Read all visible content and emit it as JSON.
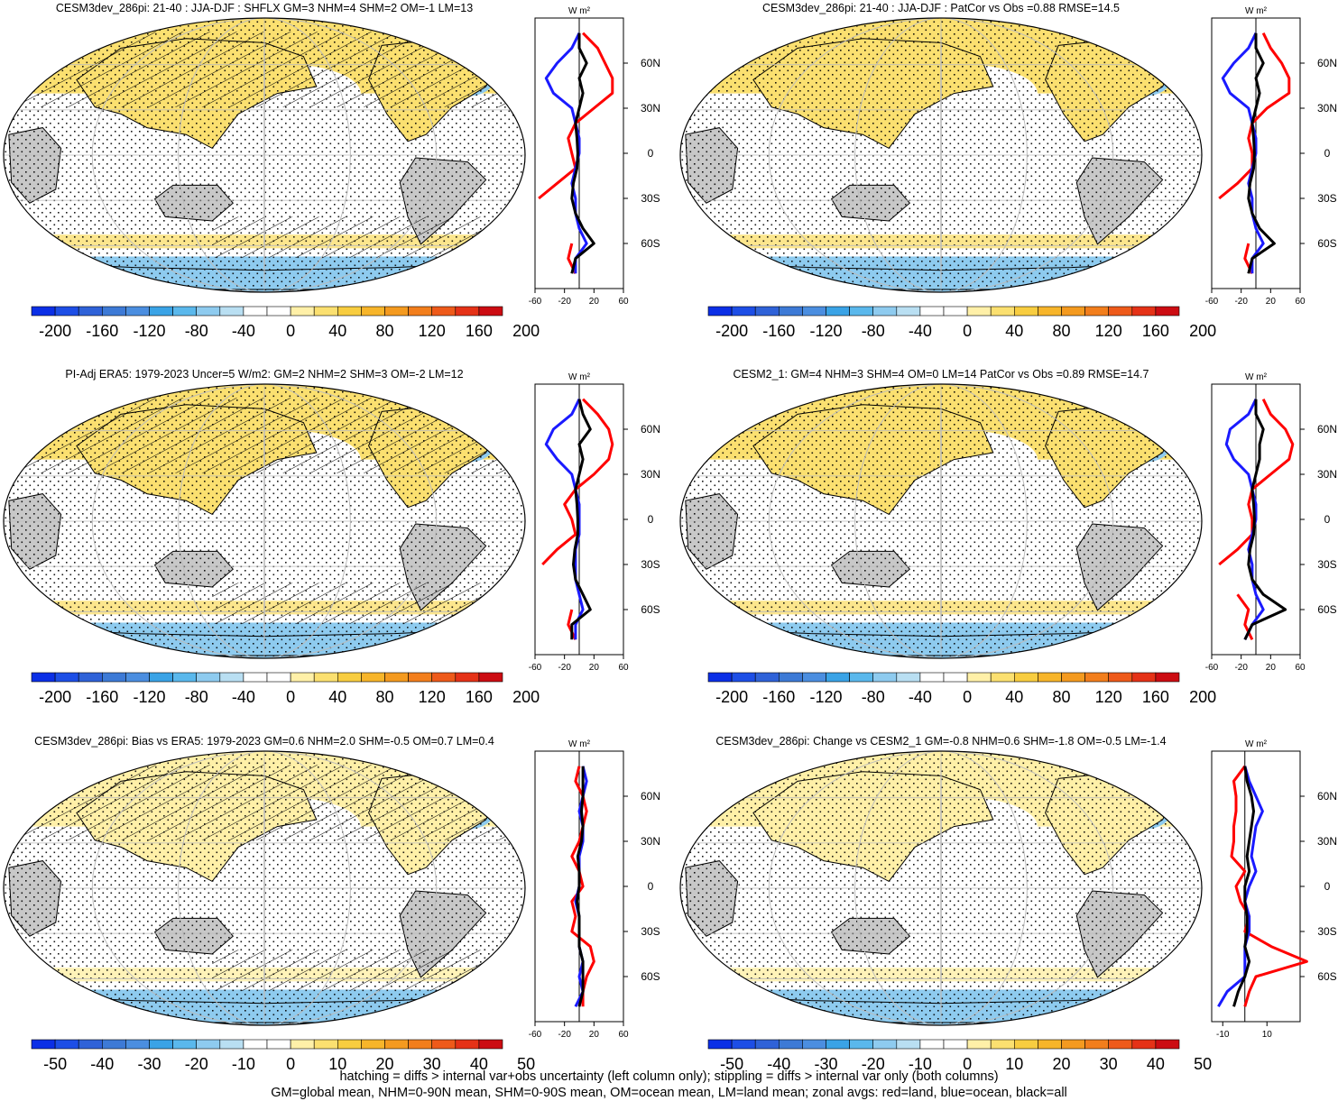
{
  "colors": {
    "levels": [
      "#0b2fe6",
      "#1d4ee6",
      "#2f62d8",
      "#3d7ad6",
      "#4b8ee0",
      "#3aa3e6",
      "#5ab8ec",
      "#8ecbef",
      "#b9dff2",
      "#ffffff",
      "#ffffff",
      "#fff0a8",
      "#fbe070",
      "#f8cd40",
      "#f7b52a",
      "#f49a1f",
      "#f27e1c",
      "#ee5a1a",
      "#e53217",
      "#cc0c12"
    ],
    "land_mask": "#c8c8c8",
    "land_profile": "#ff0000",
    "ocean_profile": "#1a1aff",
    "all_profile": "#000000"
  },
  "panels": [
    {
      "title": "CESM3dev_286pi: 21-40 : JJA-DJF : SHFLX GM=3 NHM=4 SHM=2 OM=-1 LM=13",
      "colorbar_labels": [
        "-200",
        "-160",
        "-120",
        "-80",
        "-40",
        "0",
        "40",
        "80",
        "120",
        "160",
        "200"
      ],
      "profile_unit": "W m²",
      "profile_xticks": [
        "-60",
        "-20",
        "20",
        "60"
      ],
      "lat_labels": [
        "60N",
        "30N",
        "0",
        "30S",
        "60S"
      ],
      "hatching": true
    },
    {
      "title": "CESM3dev_286pi: 21-40 : JJA-DJF : PatCor vs Obs =0.88 RMSE=14.5",
      "colorbar_labels": [
        "-200",
        "-160",
        "-120",
        "-80",
        "-40",
        "0",
        "40",
        "80",
        "120",
        "160",
        "200"
      ],
      "profile_unit": "W m²",
      "profile_xticks": [
        "-60",
        "-20",
        "20",
        "60"
      ],
      "lat_labels": [
        "60N",
        "30N",
        "0",
        "30S",
        "60S"
      ],
      "hatching": false
    },
    {
      "title": "PI-Adj ERA5: 1979-2023 Uncer=5 W/m2: GM=2 NHM=2 SHM=3 OM=-2 LM=12",
      "colorbar_labels": [
        "-200",
        "-160",
        "-120",
        "-80",
        "-40",
        "0",
        "40",
        "80",
        "120",
        "160",
        "200"
      ],
      "profile_unit": "W m²",
      "profile_xticks": [
        "-60",
        "-20",
        "20",
        "60"
      ],
      "lat_labels": [
        "60N",
        "30N",
        "0",
        "30S",
        "60S"
      ],
      "hatching": true
    },
    {
      "title": "CESM2_1: GM=4 NHM=3 SHM=4 OM=0 LM=14 PatCor vs Obs =0.89 RMSE=14.7",
      "colorbar_labels": [
        "-200",
        "-160",
        "-120",
        "-80",
        "-40",
        "0",
        "40",
        "80",
        "120",
        "160",
        "200"
      ],
      "profile_unit": "W m²",
      "profile_xticks": [
        "-60",
        "-20",
        "20",
        "60"
      ],
      "lat_labels": [
        "60N",
        "30N",
        "0",
        "30S",
        "60S"
      ],
      "hatching": false
    },
    {
      "title": "CESM3dev_286pi: Bias vs ERA5: 1979-2023 GM=0.6 NHM=2.0 SHM=-0.5 OM=0.7 LM=0.4",
      "colorbar_labels": [
        "-50",
        "-40",
        "-30",
        "-20",
        "-10",
        "0",
        "10",
        "20",
        "30",
        "40",
        "50"
      ],
      "profile_unit": "W m²",
      "profile_xticks": [
        "-60",
        "-20",
        "20",
        "60"
      ],
      "lat_labels": [
        "60N",
        "30N",
        "0",
        "30S",
        "60S"
      ],
      "hatching": true
    },
    {
      "title": "CESM3dev_286pi: Change vs CESM2_1 GM=-0.8 NHM=0.6 SHM=-1.8 OM=-0.5 LM=-1.4",
      "colorbar_labels": [
        "-50",
        "-40",
        "-30",
        "-20",
        "-10",
        "0",
        "10",
        "20",
        "30",
        "40",
        "50"
      ],
      "profile_unit": "W m²",
      "profile_xticks": [
        "-10",
        "10"
      ],
      "lat_labels": [
        "60N",
        "30N",
        "0",
        "30S",
        "60S"
      ],
      "hatching": false
    }
  ],
  "footer": {
    "line1": "hatching = diffs > internal var+obs uncertainty (left column only); stippling = diffs > internal var only (both columns)",
    "line2": "GM=global mean, NHM=0-90N mean, SHM=0-90S mean, OM=ocean mean, LM=land mean; zonal avgs: red=land, blue=ocean, black=all"
  },
  "chart_data": [
    {
      "type": "heatmap",
      "title": "CESM3dev_286pi: 21-40 : JJA-DJF : SHFLX GM=3 NHM=4 SHM=2 OM=-1 LM=13",
      "colorbar": [
        -200,
        -160,
        -120,
        -80,
        -40,
        0,
        40,
        80,
        120,
        160,
        200
      ],
      "zonal_profile": {
        "xticks": [
          -60,
          -20,
          20,
          60
        ],
        "lat": [
          -80,
          -70,
          -60,
          -50,
          -40,
          -30,
          -20,
          -10,
          0,
          10,
          20,
          30,
          40,
          50,
          60,
          70,
          80
        ],
        "series": [
          {
            "name": "land",
            "color": "red",
            "values": [
              -5,
              -15,
              -10,
              null,
              null,
              -55,
              -30,
              -5,
              -10,
              -15,
              -5,
              20,
              45,
              45,
              35,
              25,
              5
            ]
          },
          {
            "name": "ocean",
            "color": "blue",
            "values": [
              -5,
              -5,
              10,
              0,
              -5,
              -5,
              -10,
              -5,
              0,
              0,
              -5,
              -10,
              -35,
              -45,
              -30,
              -10,
              0
            ]
          },
          {
            "name": "all",
            "color": "black",
            "values": [
              -10,
              -5,
              20,
              5,
              -5,
              -10,
              -8,
              -3,
              -2,
              -3,
              -5,
              0,
              5,
              0,
              10,
              0,
              0
            ]
          }
        ]
      }
    },
    {
      "type": "heatmap",
      "title": "CESM3dev_286pi: 21-40 : JJA-DJF : PatCor vs Obs =0.88 RMSE=14.5",
      "colorbar": [
        -200,
        -160,
        -120,
        -80,
        -40,
        0,
        40,
        80,
        120,
        160,
        200
      ],
      "zonal_profile": {
        "xticks": [
          -60,
          -20,
          20,
          60
        ],
        "lat": [
          -80,
          -70,
          -60,
          -50,
          -40,
          -30,
          -20,
          -10,
          0,
          10,
          20,
          30,
          40,
          50,
          60,
          70,
          80
        ],
        "series": [
          {
            "name": "land",
            "color": "red",
            "values": [
              -5,
              -15,
              -10,
              null,
              null,
              -50,
              -25,
              -5,
              -5,
              -10,
              -5,
              15,
              45,
              45,
              35,
              20,
              10
            ]
          },
          {
            "name": "ocean",
            "color": "blue",
            "values": [
              -5,
              -5,
              10,
              0,
              -5,
              -5,
              -10,
              -5,
              0,
              0,
              -5,
              -10,
              -35,
              -45,
              -30,
              -10,
              0
            ]
          },
          {
            "name": "all",
            "color": "black",
            "values": [
              -10,
              -5,
              25,
              5,
              -5,
              -10,
              -8,
              -3,
              -2,
              -3,
              -5,
              0,
              5,
              0,
              10,
              0,
              0
            ]
          }
        ]
      }
    },
    {
      "type": "heatmap",
      "title": "PI-Adj ERA5: 1979-2023 Uncer=5 W/m2: GM=2 NHM=2 SHM=3 OM=-2 LM=12",
      "colorbar": [
        -200,
        -160,
        -120,
        -80,
        -40,
        0,
        40,
        80,
        120,
        160,
        200
      ],
      "zonal_profile": {
        "xticks": [
          -60,
          -20,
          20,
          60
        ],
        "lat": [
          -80,
          -70,
          -60,
          -50,
          -40,
          -30,
          -20,
          -10,
          0,
          10,
          20,
          30,
          40,
          50,
          60,
          70,
          80
        ],
        "series": [
          {
            "name": "land",
            "color": "red",
            "values": [
              -5,
              -15,
              -10,
              null,
              null,
              -50,
              -30,
              -5,
              -10,
              -20,
              -5,
              20,
              40,
              45,
              40,
              25,
              5
            ]
          },
          {
            "name": "ocean",
            "color": "blue",
            "values": [
              -5,
              -5,
              5,
              0,
              -5,
              -5,
              -5,
              0,
              0,
              0,
              -5,
              -10,
              -30,
              -45,
              -35,
              -10,
              0
            ]
          },
          {
            "name": "all",
            "color": "black",
            "values": [
              -10,
              -10,
              15,
              5,
              -5,
              -8,
              -6,
              -2,
              -2,
              -3,
              -5,
              0,
              5,
              0,
              15,
              5,
              0
            ]
          }
        ]
      }
    },
    {
      "type": "heatmap",
      "title": "CESM2_1: GM=4 NHM=3 SHM=4 OM=0 LM=14 PatCor vs Obs =0.89 RMSE=14.7",
      "colorbar": [
        -200,
        -160,
        -120,
        -80,
        -40,
        0,
        40,
        80,
        120,
        160,
        200
      ],
      "zonal_profile": {
        "xticks": [
          -60,
          -20,
          20,
          60
        ],
        "lat": [
          -80,
          -70,
          -60,
          -50,
          -40,
          -30,
          -20,
          -10,
          0,
          10,
          20,
          30,
          40,
          50,
          60,
          70,
          80
        ],
        "series": [
          {
            "name": "land",
            "color": "red",
            "values": [
              -5,
              -15,
              -10,
              -25,
              null,
              -50,
              -25,
              -5,
              -5,
              -10,
              -5,
              20,
              45,
              50,
              40,
              20,
              10
            ]
          },
          {
            "name": "ocean",
            "color": "blue",
            "values": [
              -15,
              -5,
              10,
              0,
              -5,
              -5,
              -10,
              -5,
              0,
              0,
              -5,
              -10,
              -30,
              -40,
              -35,
              -10,
              0
            ]
          },
          {
            "name": "all",
            "color": "black",
            "values": [
              -15,
              -5,
              40,
              10,
              -5,
              -10,
              -8,
              -3,
              -2,
              -3,
              -5,
              0,
              5,
              5,
              10,
              0,
              0
            ]
          }
        ]
      }
    },
    {
      "type": "heatmap",
      "title": "CESM3dev_286pi: Bias vs ERA5: 1979-2023 GM=0.6 NHM=2.0 SHM=-0.5 OM=0.7 LM=0.4",
      "colorbar": [
        -50,
        -40,
        -30,
        -20,
        -10,
        0,
        10,
        20,
        30,
        40,
        50
      ],
      "zonal_profile": {
        "xticks": [
          -60,
          -20,
          20,
          60
        ],
        "lat": [
          -80,
          -70,
          -60,
          -50,
          -40,
          -30,
          -20,
          -10,
          0,
          10,
          20,
          30,
          40,
          50,
          60,
          70,
          80
        ],
        "series": [
          {
            "name": "land",
            "color": "red",
            "values": [
              5,
              5,
              10,
              20,
              15,
              -10,
              -5,
              -10,
              5,
              0,
              -10,
              0,
              5,
              10,
              5,
              -5,
              0
            ]
          },
          {
            "name": "ocean",
            "color": "blue",
            "values": [
              -5,
              5,
              0,
              5,
              0,
              0,
              0,
              -5,
              0,
              0,
              0,
              5,
              5,
              0,
              5,
              10,
              5
            ]
          },
          {
            "name": "all",
            "color": "black",
            "values": [
              0,
              5,
              5,
              5,
              0,
              0,
              0,
              -3,
              0,
              0,
              -2,
              3,
              5,
              3,
              5,
              5,
              5
            ]
          }
        ]
      }
    },
    {
      "type": "heatmap",
      "title": "CESM3dev_286pi: Change vs CESM2_1 GM=-0.8 NHM=0.6 SHM=-1.8 OM=-0.5 LM=-1.4",
      "colorbar": [
        -50,
        -40,
        -30,
        -20,
        -10,
        0,
        10,
        20,
        30,
        40,
        50
      ],
      "zonal_profile": {
        "xticks": [
          -10,
          10
        ],
        "lat": [
          -80,
          -70,
          -60,
          -50,
          -40,
          -30,
          -20,
          -10,
          0,
          10,
          20,
          30,
          40,
          50,
          60,
          70,
          80
        ],
        "series": [
          {
            "name": "land",
            "color": "red",
            "values": [
              0,
              2,
              5,
              28,
              12,
              0,
              2,
              -2,
              -4,
              0,
              -6,
              -5,
              -5,
              -4,
              -4,
              -5,
              0
            ]
          },
          {
            "name": "ocean",
            "color": "blue",
            "values": [
              -12,
              -8,
              0,
              0,
              0,
              2,
              2,
              0,
              2,
              5,
              3,
              4,
              5,
              8,
              5,
              2,
              0
            ]
          },
          {
            "name": "all",
            "color": "black",
            "values": [
              -5,
              -3,
              0,
              2,
              0,
              1,
              1,
              0,
              0,
              2,
              1,
              2,
              3,
              4,
              3,
              1,
              0
            ]
          }
        ]
      }
    }
  ]
}
